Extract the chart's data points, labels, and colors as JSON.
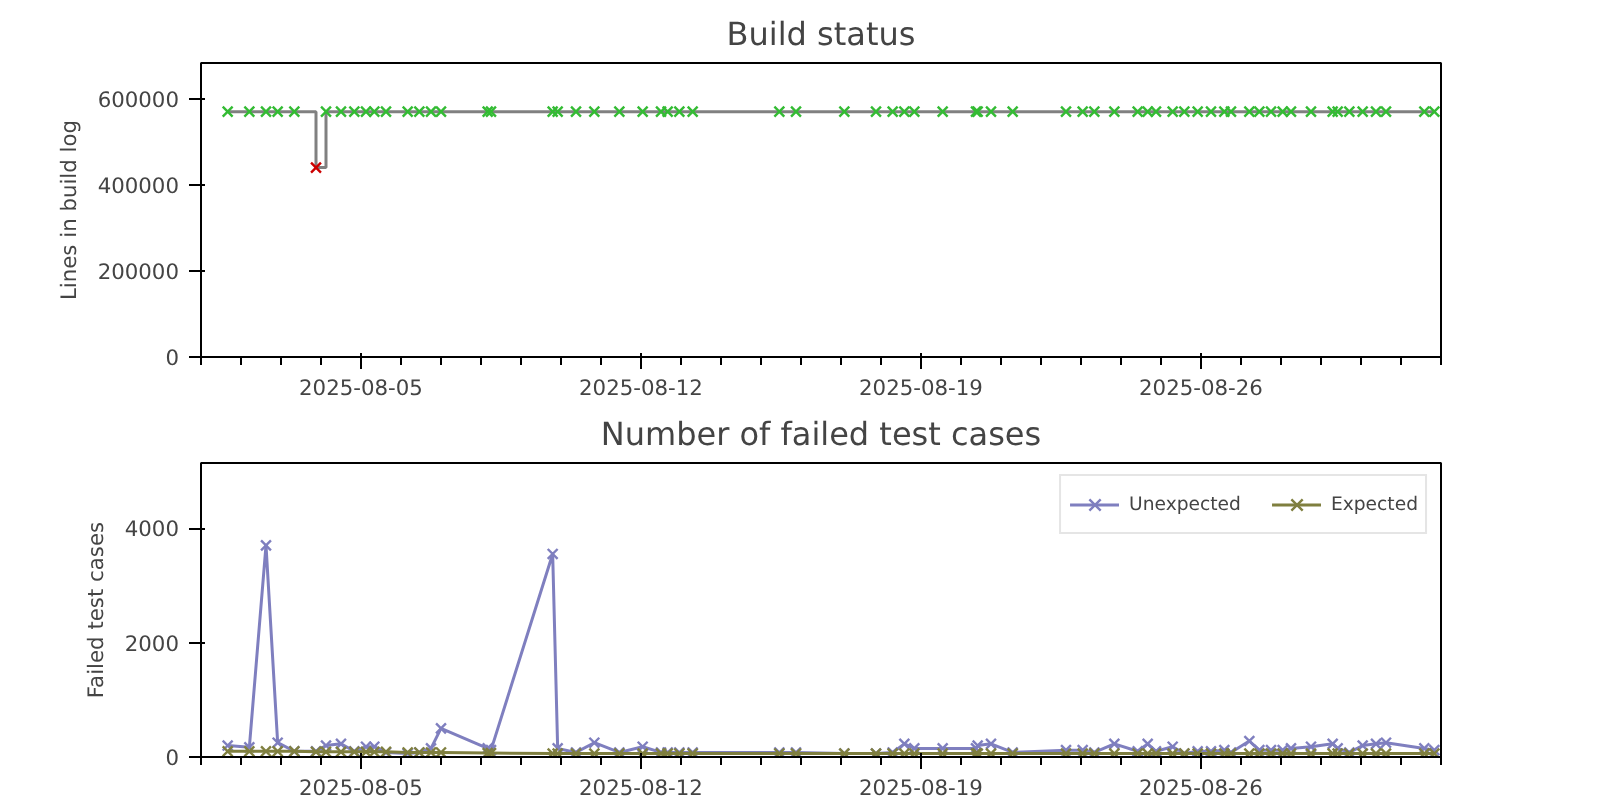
{
  "chart_data": [
    {
      "type": "step",
      "title": "Build status",
      "ylabel": "Lines in build log",
      "x": [
        "2025-08-01T16:00",
        "2025-08-02T05:00",
        "2025-08-02T15:00",
        "2025-08-02T22:00",
        "2025-08-03T08:00",
        "2025-08-03T21:00",
        "2025-08-04T03:00",
        "2025-08-04T12:00",
        "2025-08-04T20:00",
        "2025-08-05T03:00",
        "2025-08-05T08:00",
        "2025-08-05T15:00",
        "2025-08-06T04:00",
        "2025-08-06T11:00",
        "2025-08-06T18:00",
        "2025-08-07T00:00",
        "2025-08-08T04:00",
        "2025-08-08T06:00",
        "2025-08-09T19:00",
        "2025-08-09T22:00",
        "2025-08-10T09:00",
        "2025-08-10T20:00",
        "2025-08-11T11:00",
        "2025-08-12T01:00",
        "2025-08-12T12:00",
        "2025-08-12T16:00",
        "2025-08-12T23:00",
        "2025-08-13T07:00",
        "2025-08-15T11:00",
        "2025-08-15T21:00",
        "2025-08-17T02:00",
        "2025-08-17T21:00",
        "2025-08-18T07:00",
        "2025-08-18T14:00",
        "2025-08-18T20:00",
        "2025-08-19T13:00",
        "2025-08-20T09:00",
        "2025-08-20T10:00",
        "2025-08-20T18:00",
        "2025-08-21T07:00",
        "2025-08-22T15:00",
        "2025-08-23T01:00",
        "2025-08-23T08:00",
        "2025-08-23T20:00",
        "2025-08-24T10:00",
        "2025-08-24T16:00",
        "2025-08-24T21:00",
        "2025-08-25T07:00",
        "2025-08-25T14:00",
        "2025-08-25T22:00",
        "2025-08-26T06:00",
        "2025-08-26T14:00",
        "2025-08-26T18:00",
        "2025-08-27T05:00",
        "2025-08-27T11:00",
        "2025-08-27T18:00",
        "2025-08-28T01:00",
        "2025-08-28T06:00",
        "2025-08-28T18:00",
        "2025-08-29T07:00",
        "2025-08-29T10:00",
        "2025-08-29T17:00",
        "2025-08-30T01:00",
        "2025-08-30T09:00",
        "2025-08-30T15:00",
        "2025-08-31T14:00",
        "2025-08-31T20:00"
      ],
      "series": [
        {
          "type": "step",
          "color": "#808080",
          "marker": "none",
          "values": [
            570000,
            570000,
            570000,
            570000,
            570000,
            440000,
            570000,
            570000,
            570000,
            570000,
            570000,
            570000,
            570000,
            570000,
            570000,
            570000,
            570000,
            570000,
            570000,
            570000,
            570000,
            570000,
            570000,
            570000,
            570000,
            570000,
            570000,
            570000,
            570000,
            570000,
            570000,
            570000,
            570000,
            570000,
            570000,
            570000,
            570000,
            570000,
            570000,
            570000,
            570000,
            570000,
            570000,
            570000,
            570000,
            570000,
            570000,
            570000,
            570000,
            570000,
            570000,
            570000,
            570000,
            570000,
            570000,
            570000,
            570000,
            570000,
            570000,
            570000,
            570000,
            570000,
            570000,
            570000,
            570000,
            570000,
            570000
          ]
        },
        {
          "type": "scatter",
          "color": "#33bb33",
          "marker": "cross",
          "values": [
            570000,
            570000,
            570000,
            570000,
            570000,
            null,
            570000,
            570000,
            570000,
            570000,
            570000,
            570000,
            570000,
            570000,
            570000,
            570000,
            570000,
            570000,
            570000,
            570000,
            570000,
            570000,
            570000,
            570000,
            570000,
            570000,
            570000,
            570000,
            570000,
            570000,
            570000,
            570000,
            570000,
            570000,
            570000,
            570000,
            570000,
            570000,
            570000,
            570000,
            570000,
            570000,
            570000,
            570000,
            570000,
            570000,
            570000,
            570000,
            570000,
            570000,
            570000,
            570000,
            570000,
            570000,
            570000,
            570000,
            570000,
            570000,
            570000,
            570000,
            570000,
            570000,
            570000,
            570000,
            570000,
            570000,
            570000
          ]
        },
        {
          "type": "scatter",
          "color": "#cc0000",
          "marker": "cross",
          "values": [
            null,
            null,
            null,
            null,
            null,
            440000,
            null,
            null,
            null,
            null,
            null,
            null,
            null,
            null,
            null,
            null,
            null,
            null,
            null,
            null,
            null,
            null,
            null,
            null,
            null,
            null,
            null,
            null,
            null,
            null,
            null,
            null,
            null,
            null,
            null,
            null,
            null,
            null,
            null,
            null,
            null,
            null,
            null,
            null,
            null,
            null,
            null,
            null,
            null,
            null,
            null,
            null,
            null,
            null,
            null,
            null,
            null,
            null,
            null,
            null,
            null,
            null,
            null,
            null,
            null,
            null,
            null
          ]
        }
      ],
      "xlim": [
        "2025-08-01",
        "2025-09-01"
      ],
      "xticks": [
        "2025-08-05",
        "2025-08-12",
        "2025-08-19",
        "2025-08-26",
        {
          "value": "2025-08-01",
          "label": null
        },
        {
          "value": "2025-08-02",
          "label": null
        },
        {
          "value": "2025-08-03",
          "label": null
        },
        {
          "value": "2025-08-04",
          "label": null
        },
        {
          "value": "2025-08-06",
          "label": null
        },
        {
          "value": "2025-08-07",
          "label": null
        },
        {
          "value": "2025-08-08",
          "label": null
        },
        {
          "value": "2025-08-09",
          "label": null
        },
        {
          "value": "2025-08-10",
          "label": null
        },
        {
          "value": "2025-08-11",
          "label": null
        },
        {
          "value": "2025-08-13",
          "label": null
        },
        {
          "value": "2025-08-14",
          "label": null
        },
        {
          "value": "2025-08-15",
          "label": null
        },
        {
          "value": "2025-08-16",
          "label": null
        },
        {
          "value": "2025-08-17",
          "label": null
        },
        {
          "value": "2025-08-18",
          "label": null
        },
        {
          "value": "2025-08-20",
          "label": null
        },
        {
          "value": "2025-08-21",
          "label": null
        },
        {
          "value": "2025-08-22",
          "label": null
        },
        {
          "value": "2025-08-23",
          "label": null
        },
        {
          "value": "2025-08-24",
          "label": null
        },
        {
          "value": "2025-08-25",
          "label": null
        },
        {
          "value": "2025-08-27",
          "label": null
        },
        {
          "value": "2025-08-28",
          "label": null
        },
        {
          "value": "2025-08-29",
          "label": null
        },
        {
          "value": "2025-08-30",
          "label": null
        },
        {
          "value": "2025-08-31",
          "label": null
        },
        {
          "value": "2025-09-01",
          "label": null
        }
      ],
      "ylim": [
        0,
        683000
      ],
      "yticks": [
        0,
        200000,
        400000,
        600000
      ],
      "grid": false,
      "legend": false
    },
    {
      "type": "line",
      "title": "Number of failed test cases",
      "ylabel": "Failed test cases",
      "x": [
        "2025-08-01T16:00",
        "2025-08-02T05:00",
        "2025-08-02T15:00",
        "2025-08-02T22:00",
        "2025-08-03T08:00",
        "2025-08-03T21:00",
        "2025-08-04T03:00",
        "2025-08-04T12:00",
        "2025-08-04T20:00",
        "2025-08-05T03:00",
        "2025-08-05T08:00",
        "2025-08-05T15:00",
        "2025-08-06T04:00",
        "2025-08-06T11:00",
        "2025-08-06T18:00",
        "2025-08-07T00:00",
        "2025-08-08T04:00",
        "2025-08-08T06:00",
        "2025-08-09T19:00",
        "2025-08-09T22:00",
        "2025-08-10T09:00",
        "2025-08-10T20:00",
        "2025-08-11T11:00",
        "2025-08-12T01:00",
        "2025-08-12T12:00",
        "2025-08-12T16:00",
        "2025-08-12T23:00",
        "2025-08-13T07:00",
        "2025-08-15T11:00",
        "2025-08-15T21:00",
        "2025-08-17T02:00",
        "2025-08-17T21:00",
        "2025-08-18T07:00",
        "2025-08-18T14:00",
        "2025-08-18T20:00",
        "2025-08-19T13:00",
        "2025-08-20T09:00",
        "2025-08-20T10:00",
        "2025-08-20T18:00",
        "2025-08-21T07:00",
        "2025-08-22T15:00",
        "2025-08-23T01:00",
        "2025-08-23T08:00",
        "2025-08-23T20:00",
        "2025-08-24T10:00",
        "2025-08-24T16:00",
        "2025-08-24T21:00",
        "2025-08-25T07:00",
        "2025-08-25T14:00",
        "2025-08-25T22:00",
        "2025-08-26T06:00",
        "2025-08-26T14:00",
        "2025-08-26T18:00",
        "2025-08-27T05:00",
        "2025-08-27T11:00",
        "2025-08-27T18:00",
        "2025-08-28T01:00",
        "2025-08-28T06:00",
        "2025-08-28T18:00",
        "2025-08-29T07:00",
        "2025-08-29T10:00",
        "2025-08-29T17:00",
        "2025-08-30T01:00",
        "2025-08-30T09:00",
        "2025-08-30T15:00",
        "2025-08-31T14:00",
        "2025-08-31T20:00"
      ],
      "series": [
        {
          "name": "Unexpected",
          "color": "#7f7fbf",
          "values": [
            200,
            170,
            3700,
            250,
            100,
            100,
            200,
            230,
            100,
            180,
            180,
            80,
            60,
            80,
            150,
            500,
            150,
            120,
            3550,
            150,
            80,
            250,
            80,
            180,
            80,
            80,
            80,
            80,
            80,
            80,
            60,
            60,
            80,
            230,
            150,
            150,
            150,
            200,
            230,
            80,
            120,
            120,
            80,
            230,
            100,
            230,
            100,
            180,
            60,
            100,
            100,
            120,
            80,
            280,
            120,
            120,
            120,
            150,
            180,
            230,
            150,
            80,
            200,
            230,
            250,
            150,
            120
          ]
        },
        {
          "name": "Expected",
          "color": "#7f7f3f",
          "values": [
            100,
            100,
            100,
            100,
            100,
            90,
            90,
            90,
            90,
            90,
            90,
            90,
            80,
            80,
            80,
            80,
            70,
            70,
            60,
            60,
            60,
            60,
            60,
            60,
            60,
            60,
            60,
            60,
            60,
            60,
            60,
            60,
            60,
            60,
            60,
            60,
            60,
            60,
            60,
            60,
            60,
            60,
            60,
            60,
            60,
            60,
            60,
            60,
            60,
            60,
            60,
            60,
            60,
            60,
            60,
            60,
            60,
            60,
            60,
            60,
            60,
            60,
            60,
            60,
            60,
            60,
            60
          ]
        }
      ],
      "xlim": [
        "2025-08-01",
        "2025-09-01"
      ],
      "xticks": [
        "2025-08-05",
        "2025-08-12",
        "2025-08-19",
        "2025-08-26",
        {
          "value": "2025-08-01",
          "label": null
        },
        {
          "value": "2025-08-02",
          "label": null
        },
        {
          "value": "2025-08-03",
          "label": null
        },
        {
          "value": "2025-08-04",
          "label": null
        },
        {
          "value": "2025-08-06",
          "label": null
        },
        {
          "value": "2025-08-07",
          "label": null
        },
        {
          "value": "2025-08-08",
          "label": null
        },
        {
          "value": "2025-08-09",
          "label": null
        },
        {
          "value": "2025-08-10",
          "label": null
        },
        {
          "value": "2025-08-11",
          "label": null
        },
        {
          "value": "2025-08-13",
          "label": null
        },
        {
          "value": "2025-08-14",
          "label": null
        },
        {
          "value": "2025-08-15",
          "label": null
        },
        {
          "value": "2025-08-16",
          "label": null
        },
        {
          "value": "2025-08-17",
          "label": null
        },
        {
          "value": "2025-08-18",
          "label": null
        },
        {
          "value": "2025-08-20",
          "label": null
        },
        {
          "value": "2025-08-21",
          "label": null
        },
        {
          "value": "2025-08-22",
          "label": null
        },
        {
          "value": "2025-08-23",
          "label": null
        },
        {
          "value": "2025-08-24",
          "label": null
        },
        {
          "value": "2025-08-25",
          "label": null
        },
        {
          "value": "2025-08-27",
          "label": null
        },
        {
          "value": "2025-08-28",
          "label": null
        },
        {
          "value": "2025-08-29",
          "label": null
        },
        {
          "value": "2025-08-30",
          "label": null
        },
        {
          "value": "2025-08-31",
          "label": null
        },
        {
          "value": "2025-09-01",
          "label": null
        }
      ],
      "ylim": [
        0,
        5140
      ],
      "yticks": [
        0,
        2000,
        4000
      ],
      "marker": "cross",
      "grid": false,
      "legend": "top right"
    }
  ]
}
